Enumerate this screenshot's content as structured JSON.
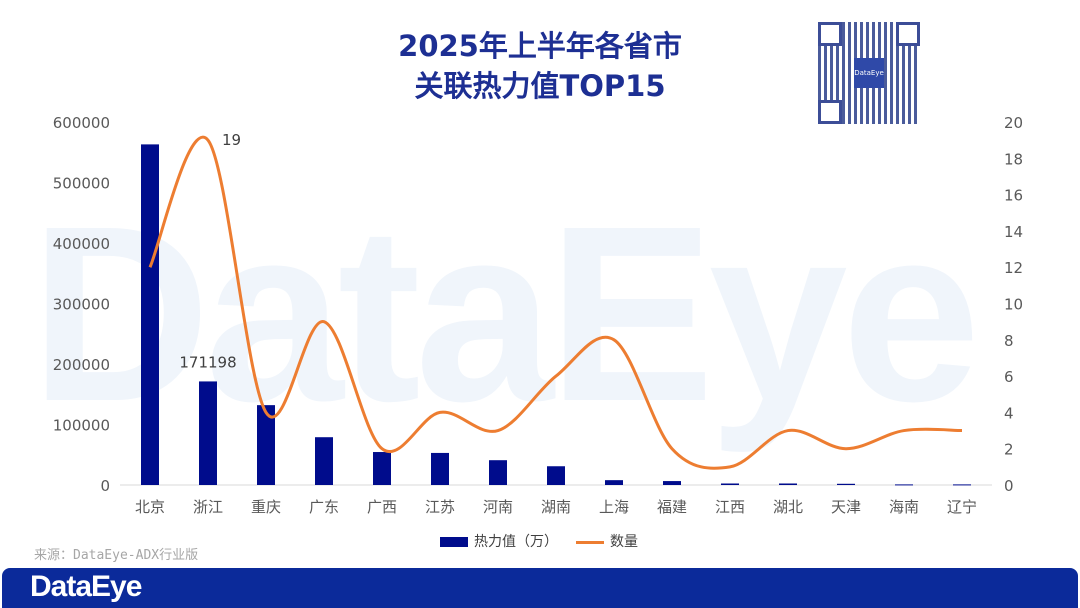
{
  "chart_data": {
    "type": "bar+line",
    "title_line1": "2025年上半年各省市",
    "title_line2": "关联热力值TOP15",
    "categories": [
      "北京",
      "浙江",
      "重庆",
      "广东",
      "广西",
      "江苏",
      "河南",
      "湖南",
      "上海",
      "福建",
      "江西",
      "湖北",
      "天津",
      "海南",
      "辽宁"
    ],
    "series": [
      {
        "name": "热力值（万）",
        "type": "bar",
        "axis": "left",
        "color": "#000c8c",
        "values": [
          563000,
          171198,
          132000,
          79000,
          54500,
          53000,
          41000,
          31000,
          8000,
          6500,
          2500,
          2500,
          2000,
          1000,
          1000
        ]
      },
      {
        "name": "数量",
        "type": "line",
        "axis": "right",
        "color": "#ed7d31",
        "smooth": true,
        "values": [
          12,
          19,
          4,
          9,
          2,
          4,
          3,
          6,
          8,
          2,
          1,
          3,
          2,
          3,
          3
        ]
      }
    ],
    "data_labels": {
      "bar_浙江": "171198",
      "line_浙江": "19"
    },
    "y_left": {
      "min": 0,
      "max": 600000,
      "ticks": [
        "0",
        "100000",
        "200000",
        "300000",
        "400000",
        "500000",
        "600000"
      ]
    },
    "y_right": {
      "min": 0,
      "max": 20,
      "ticks": [
        "0",
        "2",
        "4",
        "6",
        "8",
        "10",
        "12",
        "14",
        "16",
        "18",
        "20"
      ]
    },
    "legend_position": "bottom",
    "grid": false
  },
  "source": "来源：DataEye-ADX行业版",
  "watermark": "DataEye",
  "footer_logo": "DataEye",
  "qr_logo": "DataEye"
}
